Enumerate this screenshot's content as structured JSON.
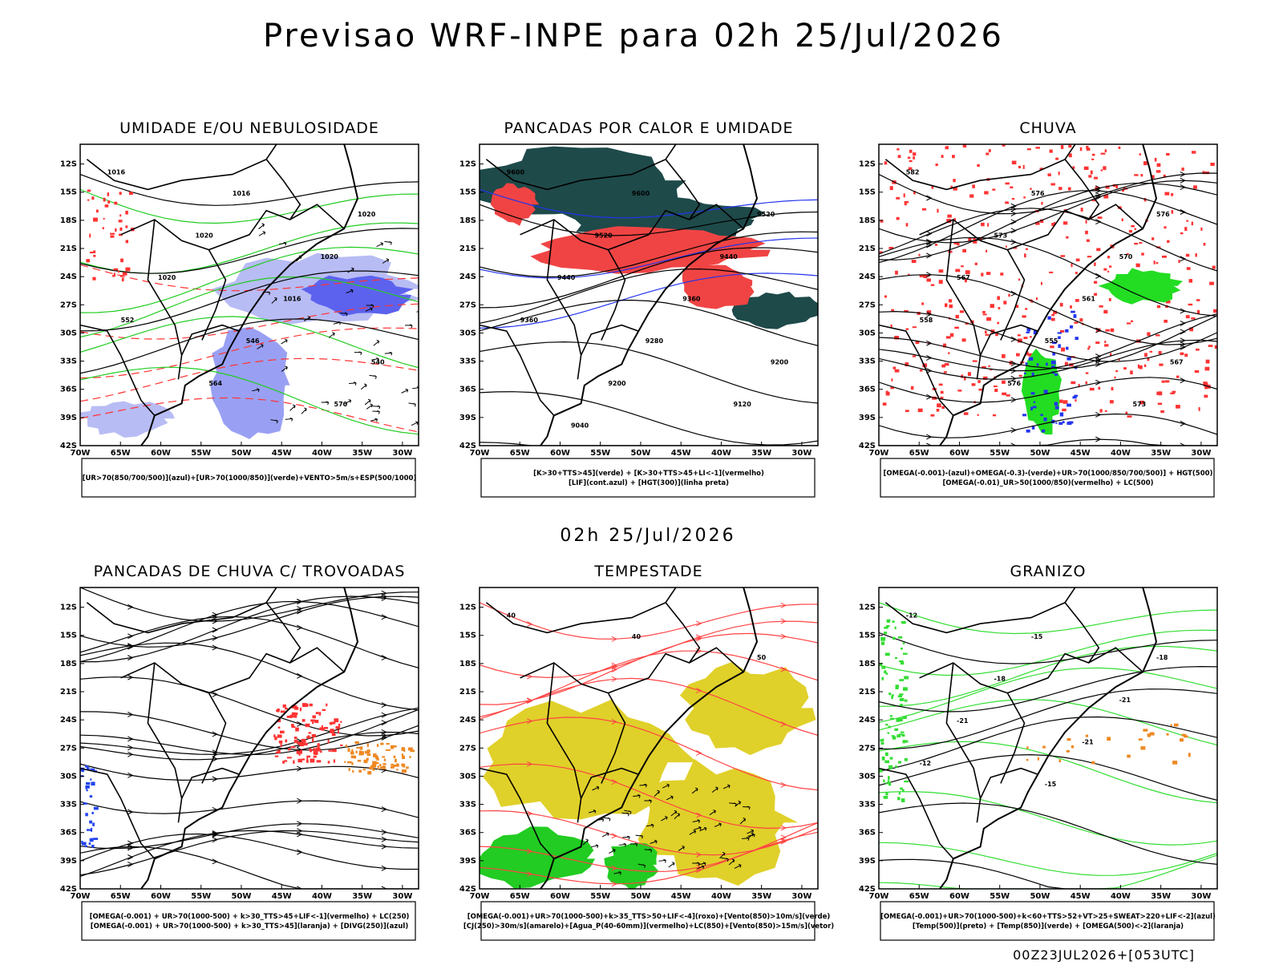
{
  "title": "Previsao WRF-INPE  para 02h 25/Jul/2026",
  "subtitle": "02h 25/Jul/2026",
  "footer": "00Z23JUL2026+[053UTC]",
  "lat_labels": [
    "12S",
    "15S",
    "18S",
    "21S",
    "24S",
    "27S",
    "30S",
    "33S",
    "36S",
    "39S",
    "42S"
  ],
  "lon_labels": [
    "70W",
    "65W",
    "60W",
    "55W",
    "50W",
    "45W",
    "40W",
    "35W",
    "30W"
  ],
  "panels": [
    {
      "title": "UMIDADE E/OU NEBULOSIDADE",
      "legend": [
        "[UR>70(850/700/500)](azul)+[UR>70(1000/850)](verde)+VENTO>5m/s+ESP(500/1000)"
      ],
      "contour_labels": [
        "1016",
        "1016",
        "1020",
        "1020",
        "1020",
        "1020",
        "1016",
        "552",
        "546",
        "540",
        "564",
        "570"
      ]
    },
    {
      "title": "PANCADAS POR CALOR E UMIDADE",
      "legend": [
        "[K>30+TTS>45](verde) + [K>30+TTS>45+LI<-1](vermelho)",
        "[LIF](cont.azul) + [HGT(300)](linha preta)"
      ],
      "contour_labels": [
        "9600",
        "9600",
        "9520",
        "9520",
        "9440",
        "9440",
        "9360",
        "9360",
        "9280",
        "9200",
        "9200",
        "9120",
        "9040"
      ]
    },
    {
      "title": "CHUVA",
      "legend": [
        "[OMEGA(-0.001)-(azul)+OMEGA(-0.3)-(verde)+UR>70(1000/850/700/500)] + HGT(500)",
        "[OMEGA(-0.01)_UR>50(1000/850)(vermelho) + LC(500)"
      ],
      "contour_labels": [
        "582",
        "576",
        "576",
        "573",
        "570",
        "567",
        "561",
        "558",
        "555",
        "567",
        "576",
        "573"
      ]
    },
    {
      "title": "PANCADAS DE CHUVA C/ TROVOADAS",
      "legend": [
        "[OMEGA(-0.001) + UR>70(1000-500) + k>30_TTS>45+LIF<-1](vermelho) + LC(250)",
        "[OMEGA(-0.001) + UR>70(1000-500) + k>30_TTS>45](laranja) + [DIVG(250)](azul)"
      ],
      "contour_labels": []
    },
    {
      "title": "TEMPESTADE",
      "legend": [
        "[OMEGA(-0.001)+UR>70(1000-500)+k>35_TTS>50+LIF<-4](roxo)+[Vento(850)>10m/s](verde)",
        "[CJ(250)>30m/s](amarelo)+[Agua_P(40-60mm)](vermelho)+LC(850)+[Vento(850)>15m/s](vetor)"
      ],
      "contour_labels": [
        "40",
        "40",
        "50"
      ]
    },
    {
      "title": "GRANIZO",
      "legend": [
        "[OMEGA(-0.001)+UR>70(1000-500)+k<60+TTS>52+VT>25+SWEAT>220+LIF<-2](azul)",
        "[Temp(500)](preto) + [Temp(850)](verde) + [OMEGA(500)<-2](laranja)"
      ],
      "contour_labels": [
        "-12",
        "-15",
        "-18",
        "-18",
        "-21",
        "-21",
        "-21",
        "-12",
        "-15"
      ]
    }
  ]
}
